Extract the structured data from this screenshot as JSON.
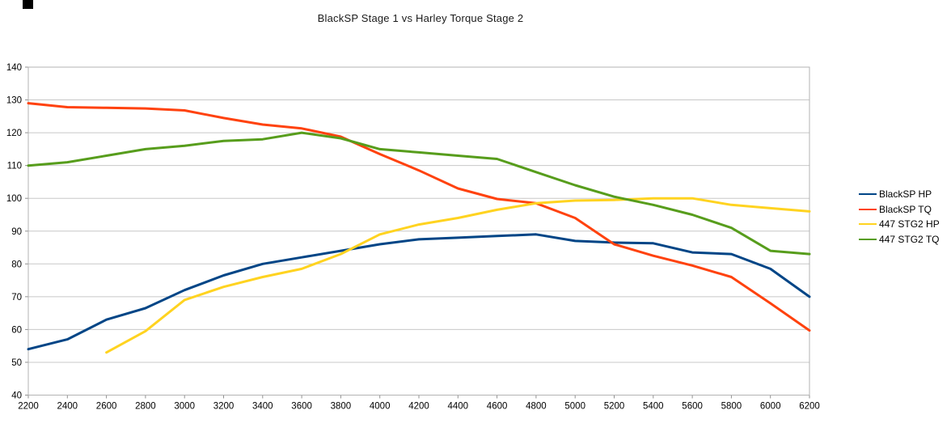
{
  "chart_data": {
    "type": "line",
    "title": "BlackSP Stage 1 vs Harley Torque Stage 2",
    "xlabel": "",
    "ylabel": "",
    "xlim": [
      2200,
      6200
    ],
    "ylim": [
      40,
      140
    ],
    "x_ticks": [
      2200,
      2400,
      2600,
      2800,
      3000,
      3200,
      3400,
      3600,
      3800,
      4000,
      4200,
      4400,
      4600,
      4800,
      5000,
      5200,
      5400,
      5600,
      5800,
      6000,
      6200
    ],
    "y_ticks": [
      40,
      50,
      60,
      70,
      80,
      90,
      100,
      110,
      120,
      130,
      140
    ],
    "grid": "horizontal",
    "legend_position": "right",
    "x": [
      2200,
      2400,
      2600,
      2800,
      3000,
      3200,
      3400,
      3600,
      3800,
      4000,
      4200,
      4400,
      4600,
      4800,
      5000,
      5200,
      5400,
      5600,
      5800,
      6000,
      6200
    ],
    "series": [
      {
        "name": "BlackSP HP",
        "color": "#004586",
        "values": [
          54,
          57,
          63,
          66.5,
          72,
          76.5,
          80,
          82,
          84,
          86,
          87.5,
          88,
          88.5,
          89,
          87,
          86.5,
          86.3,
          83.5,
          83,
          78.5,
          70
        ]
      },
      {
        "name": "BlackSP TQ",
        "color": "#FF420E",
        "values": [
          129,
          127.8,
          127.6,
          127.4,
          126.8,
          124.5,
          122.5,
          121.3,
          118.8,
          113.5,
          108.5,
          103,
          99.8,
          98.5,
          94,
          86,
          82.5,
          79.5,
          76,
          68,
          59.7
        ]
      },
      {
        "name": "447 STG2 HP",
        "color": "#FFD320",
        "values": [
          null,
          null,
          53,
          59.5,
          69,
          73,
          76,
          78.5,
          83,
          89,
          92,
          94,
          96.5,
          98.5,
          99.3,
          99.5,
          100,
          100,
          98,
          97,
          96
        ]
      },
      {
        "name": "447 STG2 TQ",
        "color": "#579D1C",
        "values": [
          110,
          111,
          113,
          115,
          116,
          117.5,
          118,
          120,
          118.3,
          115,
          114,
          113,
          112,
          108,
          104,
          100.5,
          98,
          95,
          91,
          84,
          83
        ]
      }
    ],
    "styles": {
      "gridline_color": "#c8c8c8",
      "plot_border_color": "#b3b3b3",
      "tick_color": "#8f8f8f",
      "label_color": "#000000",
      "background": "#ffffff",
      "line_width": 3
    }
  }
}
